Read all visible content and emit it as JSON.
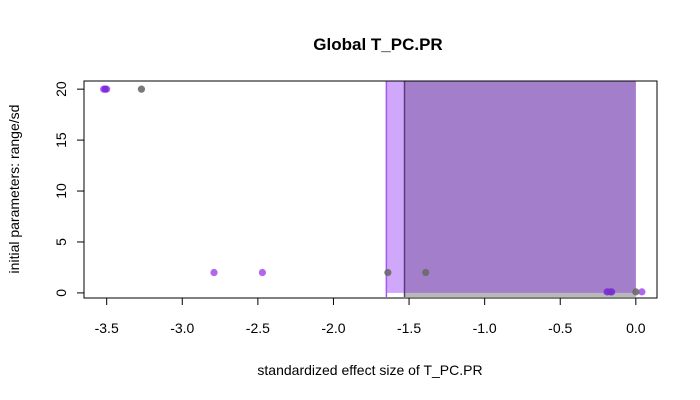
{
  "chart_data": {
    "type": "scatter",
    "title": "Global T_PC.PR",
    "xlabel": "standardized effect size of T_PC.PR",
    "ylabel": "initial parameters: range/sd",
    "xlim": [
      -3.65,
      0.14
    ],
    "ylim": [
      -0.5,
      20.8
    ],
    "x_ticks": [
      -3.5,
      -3.0,
      -2.5,
      -2.0,
      -1.5,
      -1.0,
      -0.5,
      0.0
    ],
    "x_tick_labels": [
      "-3.5",
      "-3.0",
      "-2.5",
      "-2.0",
      "-1.5",
      "-1.0",
      "-0.5",
      "0.0"
    ],
    "y_ticks": [
      0,
      5,
      10,
      15,
      20
    ],
    "y_tick_labels": [
      "0",
      "5",
      "10",
      "15",
      "20"
    ],
    "grid": false,
    "legend": "none",
    "regions": [
      {
        "name": "violet-region",
        "x": [
          -1.65,
          0.0
        ],
        "y": [
          0,
          20.8
        ],
        "color": "#cfa8fb"
      },
      {
        "name": "gray-region",
        "x": [
          -1.53,
          0.0
        ],
        "y": [
          -0.4,
          0
        ],
        "color": "#b9b9b9"
      },
      {
        "name": "purple-region",
        "x": [
          -1.53,
          0.0
        ],
        "y": [
          0,
          20.8
        ],
        "color": "#a37fcb"
      }
    ],
    "vlines": [
      {
        "name": "violet-line",
        "x": -1.65,
        "color": "#a757ee"
      },
      {
        "name": "dark-line",
        "x": -1.53,
        "color": "#5a3c7a"
      }
    ],
    "series": [
      {
        "color": "#a757ee",
        "points": [
          [
            -3.52,
            20
          ],
          [
            -3.5,
            20
          ],
          [
            -2.79,
            2
          ],
          [
            -2.47,
            2
          ],
          [
            0.04,
            0.1
          ]
        ]
      },
      {
        "color": "#6a6a6a",
        "points": [
          [
            -3.27,
            20
          ],
          [
            -1.64,
            2
          ],
          [
            -1.39,
            2
          ],
          [
            -0.17,
            0.1
          ],
          [
            0.0,
            0.1
          ]
        ]
      },
      {
        "color": "#7a2ad8",
        "points": [
          [
            -3.51,
            20
          ],
          [
            -0.19,
            0.1
          ],
          [
            -0.16,
            0.1
          ]
        ]
      }
    ]
  }
}
